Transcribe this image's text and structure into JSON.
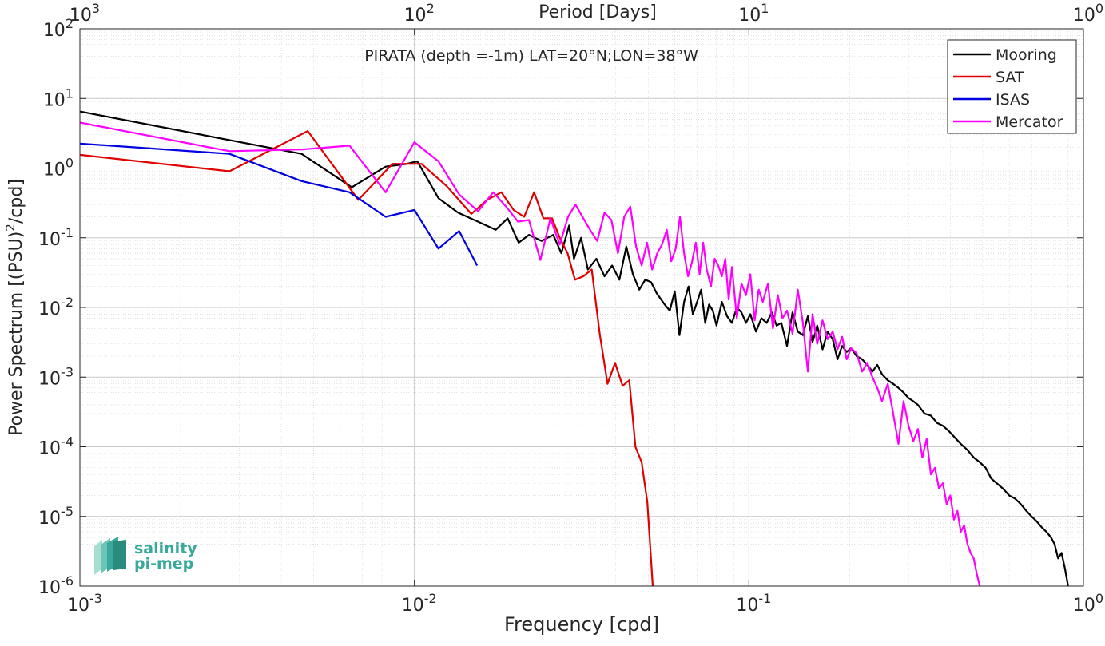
{
  "chart_data": {
    "type": "line",
    "title": "PIRATA (depth =-1m) LAT=20°N;LON=38°W",
    "xlabel": "Frequency [cpd]",
    "ylabel": "Power Spectrum [(PSU)",
    "ylabel_sup": "2",
    "ylabel_tail": "/cpd]",
    "x2label": "Period [Days]",
    "xscale": "log",
    "yscale": "log",
    "xlim": [
      0.001,
      1
    ],
    "ylim": [
      1e-06,
      100
    ],
    "grid": true,
    "legend_position": "top-right",
    "x_ticks": [
      {
        "value": 0.001,
        "base": "10",
        "exp": "-3"
      },
      {
        "value": 0.01,
        "base": "10",
        "exp": "-2"
      },
      {
        "value": 0.1,
        "base": "10",
        "exp": "-1"
      },
      {
        "value": 1,
        "base": "10",
        "exp": "0"
      }
    ],
    "y_ticks": [
      {
        "value": 1e-06,
        "base": "10",
        "exp": "-6"
      },
      {
        "value": 1e-05,
        "base": "10",
        "exp": "-5"
      },
      {
        "value": 0.0001,
        "base": "10",
        "exp": "-4"
      },
      {
        "value": 0.001,
        "base": "10",
        "exp": "-3"
      },
      {
        "value": 0.01,
        "base": "10",
        "exp": "-2"
      },
      {
        "value": 0.1,
        "base": "10",
        "exp": "-1"
      },
      {
        "value": 1,
        "base": "10",
        "exp": "0"
      },
      {
        "value": 10,
        "base": "10",
        "exp": "1"
      },
      {
        "value": 100,
        "base": "10",
        "exp": "2"
      }
    ],
    "x2_ticks": [
      {
        "value": 0.001,
        "base": "10",
        "exp": "3"
      },
      {
        "value": 0.01,
        "base": "10",
        "exp": "2"
      },
      {
        "value": 0.1,
        "base": "10",
        "exp": "1"
      },
      {
        "value": 1,
        "base": "10",
        "exp": "0"
      }
    ],
    "series": [
      {
        "name": "Mooring",
        "color": "#000000",
        "x": [
          0.001,
          0.0046,
          0.0065,
          0.0082,
          0.0095,
          0.0102,
          0.0118,
          0.0135,
          0.0155,
          0.0175,
          0.019,
          0.0205,
          0.022,
          0.024,
          0.026,
          0.0275,
          0.029,
          0.03,
          0.0315,
          0.033,
          0.035,
          0.037,
          0.039,
          0.041,
          0.043,
          0.045,
          0.047,
          0.049,
          0.051,
          0.053,
          0.056,
          0.058,
          0.06,
          0.062,
          0.064,
          0.066,
          0.068,
          0.07,
          0.072,
          0.074,
          0.076,
          0.078,
          0.08,
          0.083,
          0.086,
          0.089,
          0.092,
          0.095,
          0.098,
          0.101,
          0.105,
          0.109,
          0.113,
          0.117,
          0.121,
          0.125,
          0.13,
          0.135,
          0.14,
          0.145,
          0.15,
          0.155,
          0.16,
          0.166,
          0.172,
          0.178,
          0.184,
          0.19,
          0.196,
          0.202,
          0.21,
          0.218,
          0.226,
          0.234,
          0.242,
          0.25,
          0.26,
          0.27,
          0.28,
          0.29,
          0.3,
          0.31,
          0.32,
          0.335,
          0.35,
          0.365,
          0.38,
          0.395,
          0.41,
          0.43,
          0.45,
          0.47,
          0.49,
          0.51,
          0.53,
          0.55,
          0.575,
          0.6,
          0.625,
          0.65,
          0.675,
          0.7,
          0.725,
          0.75,
          0.775,
          0.8,
          0.82,
          0.84,
          0.86,
          0.88,
          0.9
        ],
        "y": [
          6.5,
          1.6,
          0.53,
          1.05,
          1.15,
          1.25,
          0.37,
          0.23,
          0.17,
          0.13,
          0.19,
          0.085,
          0.11,
          0.09,
          0.11,
          0.06,
          0.15,
          0.05,
          0.1,
          0.035,
          0.05,
          0.028,
          0.04,
          0.025,
          0.075,
          0.03,
          0.018,
          0.025,
          0.023,
          0.016,
          0.011,
          0.009,
          0.017,
          0.004,
          0.012,
          0.02,
          0.008,
          0.012,
          0.018,
          0.006,
          0.011,
          0.009,
          0.0055,
          0.012,
          0.0075,
          0.006,
          0.01,
          0.0085,
          0.006,
          0.008,
          0.0045,
          0.007,
          0.006,
          0.0085,
          0.0055,
          0.006,
          0.0028,
          0.0085,
          0.0045,
          0.004,
          0.0075,
          0.0032,
          0.0055,
          0.0025,
          0.0045,
          0.0035,
          0.0018,
          0.0028,
          0.0023,
          0.0026,
          0.002,
          0.0018,
          0.0015,
          0.0012,
          0.0015,
          0.0011,
          0.0009,
          0.0008,
          0.0007,
          0.0006,
          0.0005,
          0.00045,
          0.0004,
          0.0003,
          0.00028,
          0.00022,
          0.0002,
          0.00017,
          0.00014,
          0.00011,
          9e-05,
          7e-05,
          6e-05,
          5e-05,
          3.5e-05,
          3e-05,
          2.5e-05,
          2e-05,
          1.8e-05,
          1.5e-05,
          1.2e-05,
          1e-05,
          8.5e-06,
          7e-06,
          6e-06,
          5e-06,
          4e-06,
          2.5e-06,
          3e-06,
          1.8e-06,
          1e-06
        ]
      },
      {
        "name": "SAT",
        "color": "#e00000",
        "x": [
          0.001,
          0.0028,
          0.0048,
          0.0068,
          0.0086,
          0.0105,
          0.0125,
          0.0148,
          0.0165,
          0.0182,
          0.0198,
          0.0213,
          0.0228,
          0.0243,
          0.0258,
          0.0272,
          0.0287,
          0.0302,
          0.032,
          0.0339,
          0.0358,
          0.0378,
          0.0398,
          0.0419,
          0.0439,
          0.0458,
          0.0478,
          0.0497,
          0.0516
        ],
        "y": [
          1.55,
          0.9,
          3.4,
          0.35,
          1.15,
          1.15,
          0.55,
          0.22,
          0.35,
          0.45,
          0.25,
          0.2,
          0.45,
          0.19,
          0.19,
          0.1,
          0.06,
          0.025,
          0.028,
          0.035,
          0.0042,
          0.0008,
          0.0016,
          0.00075,
          0.0009,
          0.0001,
          6e-05,
          1.6e-05,
          1e-06
        ]
      },
      {
        "name": "ISAS",
        "color": "#0000e0",
        "x": [
          0.001,
          0.0028,
          0.0046,
          0.0064,
          0.0082,
          0.01,
          0.0118,
          0.0136,
          0.0154
        ],
        "y": [
          2.25,
          1.6,
          0.65,
          0.45,
          0.2,
          0.25,
          0.07,
          0.125,
          0.04
        ]
      },
      {
        "name": "Mercator",
        "color": "#ff00ff",
        "x": [
          0.001,
          0.0028,
          0.0046,
          0.0064,
          0.0082,
          0.01,
          0.0118,
          0.0136,
          0.0155,
          0.0172,
          0.0188,
          0.0204,
          0.022,
          0.0238,
          0.0255,
          0.0272,
          0.0288,
          0.0303,
          0.0318,
          0.0335,
          0.0352,
          0.037,
          0.0388,
          0.0406,
          0.0424,
          0.0442,
          0.046,
          0.0478,
          0.0496,
          0.0514,
          0.0532,
          0.055,
          0.0568,
          0.0586,
          0.0604,
          0.0622,
          0.064,
          0.0658,
          0.0676,
          0.0694,
          0.0712,
          0.073,
          0.0748,
          0.077,
          0.079,
          0.081,
          0.083,
          0.085,
          0.087,
          0.089,
          0.092,
          0.095,
          0.098,
          0.101,
          0.104,
          0.107,
          0.11,
          0.114,
          0.118,
          0.122,
          0.126,
          0.13,
          0.135,
          0.14,
          0.145,
          0.15,
          0.155,
          0.16,
          0.166,
          0.172,
          0.178,
          0.184,
          0.19,
          0.196,
          0.202,
          0.21,
          0.218,
          0.226,
          0.234,
          0.242,
          0.25,
          0.26,
          0.27,
          0.28,
          0.29,
          0.3,
          0.31,
          0.32,
          0.33,
          0.34,
          0.35,
          0.36,
          0.37,
          0.38,
          0.39,
          0.4,
          0.41,
          0.42,
          0.43,
          0.44,
          0.45,
          0.46,
          0.47,
          0.48,
          0.49
        ],
        "y": [
          4.5,
          1.75,
          1.85,
          2.1,
          0.45,
          2.35,
          1.25,
          0.42,
          0.24,
          0.45,
          0.28,
          0.17,
          0.18,
          0.048,
          0.19,
          0.08,
          0.2,
          0.3,
          0.2,
          0.13,
          0.09,
          0.23,
          0.18,
          0.06,
          0.2,
          0.28,
          0.075,
          0.04,
          0.085,
          0.035,
          0.06,
          0.08,
          0.13,
          0.046,
          0.07,
          0.2,
          0.06,
          0.028,
          0.045,
          0.085,
          0.03,
          0.085,
          0.035,
          0.02,
          0.05,
          0.04,
          0.028,
          0.05,
          0.013,
          0.038,
          0.007,
          0.022,
          0.015,
          0.03,
          0.0065,
          0.018,
          0.012,
          0.022,
          0.005,
          0.015,
          0.007,
          0.009,
          0.0042,
          0.018,
          0.006,
          0.0012,
          0.008,
          0.003,
          0.0065,
          0.0035,
          0.0045,
          0.0025,
          0.0038,
          0.0018,
          0.0026,
          0.0022,
          0.0012,
          0.0016,
          0.001,
          0.0007,
          0.00045,
          0.0008,
          0.0003,
          0.00011,
          0.00045,
          0.0002,
          0.00012,
          0.00018,
          7e-05,
          0.00013,
          4e-05,
          5e-05,
          2.5e-05,
          3e-05,
          1.5e-05,
          2e-05,
          9e-06,
          1.2e-05,
          6e-06,
          7.5e-06,
          4e-06,
          3e-06,
          2.5e-06,
          1.5e-06,
          1e-06
        ]
      }
    ]
  },
  "logo": {
    "line1": "salinity",
    "line2": "pi-mep",
    "color": "#3aa89a"
  }
}
